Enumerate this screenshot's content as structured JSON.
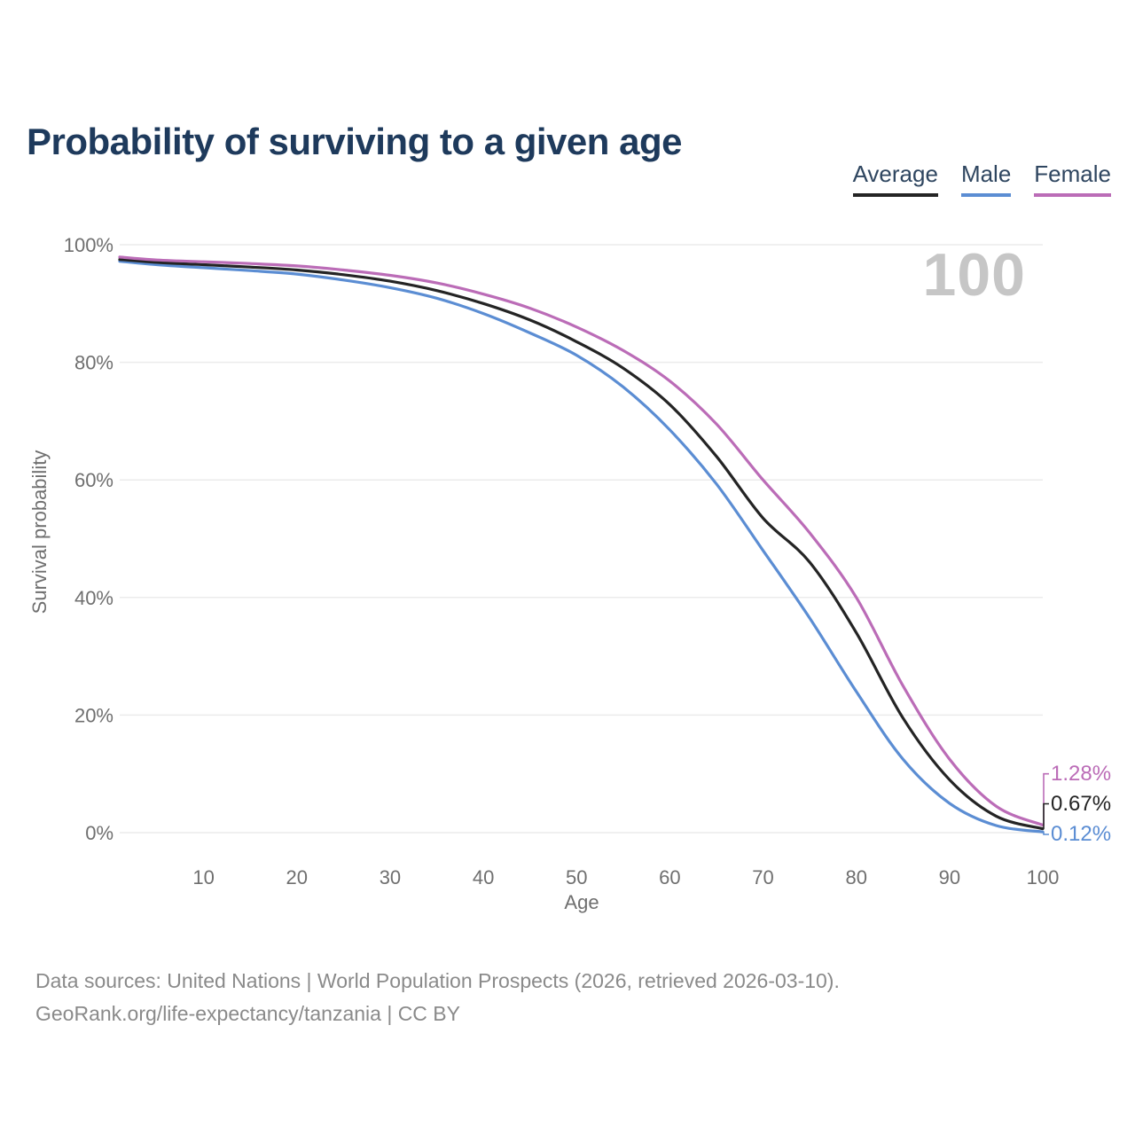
{
  "title": "Probability of surviving to a given age",
  "legend": {
    "items": [
      {
        "label": "Average",
        "color": "#242424"
      },
      {
        "label": "Male",
        "color": "#5b8dd3"
      },
      {
        "label": "Female",
        "color": "#bb6cb7"
      }
    ]
  },
  "watermark": "100",
  "axis": {
    "x_label": "Age",
    "y_label": "Survival probability"
  },
  "footer": {
    "line1": "Data sources: United Nations | World Population Prospects (2026, retrieved 2026-03-10).",
    "line2": "GeoRank.org/life-expectancy/tanzania | CC BY"
  },
  "colors": {
    "title": "#1e3a5c",
    "grid": "#ebebeb",
    "tick_text": "#6f6f6f",
    "footer_text": "#8a8a8a",
    "watermark": "#c6c6c6"
  },
  "chart_data": {
    "type": "line",
    "title": "Probability of surviving to a given age",
    "xlabel": "Age",
    "ylabel": "Survival probability",
    "xlim": [
      1,
      100
    ],
    "ylim": [
      0,
      100
    ],
    "grid": "horizontal",
    "legend_position": "top-right",
    "x": [
      1,
      5,
      10,
      15,
      20,
      25,
      30,
      35,
      40,
      45,
      50,
      55,
      60,
      65,
      70,
      75,
      80,
      85,
      90,
      95,
      100
    ],
    "series": [
      {
        "name": "Male",
        "color": "#5b8dd3",
        "values": [
          97.2,
          96.6,
          96.1,
          95.6,
          95.0,
          94.0,
          92.7,
          90.9,
          88.3,
          85.0,
          81.2,
          75.8,
          68.5,
          59.3,
          48.0,
          36.5,
          24.0,
          12.5,
          5.0,
          1.2,
          0.12
        ],
        "end_label": "0.12%"
      },
      {
        "name": "Average",
        "color": "#242424",
        "values": [
          97.5,
          97.0,
          96.6,
          96.2,
          95.7,
          94.9,
          93.8,
          92.2,
          90.0,
          87.2,
          83.5,
          79.0,
          72.8,
          64.0,
          53.5,
          46.0,
          34.0,
          19.5,
          9.0,
          2.8,
          0.67
        ],
        "end_label": "0.67%"
      },
      {
        "name": "Female",
        "color": "#bb6cb7",
        "values": [
          97.9,
          97.4,
          97.1,
          96.8,
          96.4,
          95.7,
          94.8,
          93.5,
          91.6,
          89.2,
          86.0,
          82.0,
          76.8,
          69.5,
          60.0,
          51.0,
          40.0,
          25.0,
          12.5,
          4.5,
          1.28
        ],
        "end_label": "1.28%"
      }
    ],
    "xticks": [
      10,
      20,
      30,
      40,
      50,
      60,
      70,
      80,
      90,
      100
    ],
    "yticks": [
      {
        "value": 0,
        "label": "0%"
      },
      {
        "value": 20,
        "label": "20%"
      },
      {
        "value": 40,
        "label": "40%"
      },
      {
        "value": 60,
        "label": "60%"
      },
      {
        "value": 80,
        "label": "80%"
      },
      {
        "value": 100,
        "label": "100%"
      }
    ],
    "annotations": [
      {
        "text": "1.28%",
        "series": "Female",
        "value": 1.28,
        "label_y_pct": 10.0
      },
      {
        "text": "0.67%",
        "series": "Average",
        "value": 0.67,
        "label_y_pct": 4.9
      },
      {
        "text": "0.12%",
        "series": "Male",
        "value": 0.12,
        "label_y_pct": -0.3
      }
    ]
  }
}
